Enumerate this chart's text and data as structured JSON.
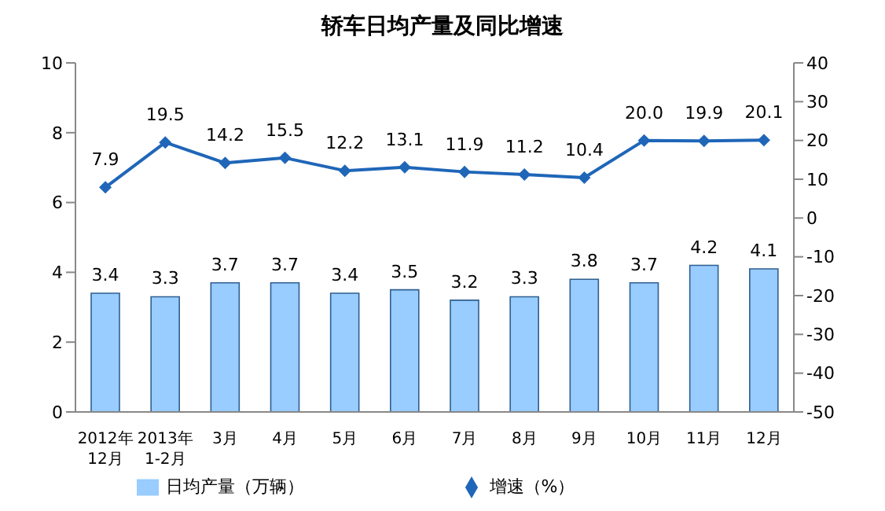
{
  "chart_data": {
    "type": "bar",
    "title": "轿车日均产量及同比增速",
    "categories": [
      "2012年\n12月",
      "2013年\n1-2月",
      "3月",
      "4月",
      "5月",
      "6月",
      "7月",
      "8月",
      "9月",
      "10月",
      "11月",
      "12月"
    ],
    "series": [
      {
        "name": "日均产量（万辆）",
        "color": "#99ccff",
        "values": [
          3.4,
          3.3,
          3.7,
          3.7,
          3.4,
          3.5,
          3.2,
          3.3,
          3.8,
          3.7,
          4.2,
          4.1
        ],
        "value_labels": [
          "3.4",
          "3.3",
          "3.7",
          "3.7",
          "3.4",
          "3.5",
          "3.2",
          "3.3",
          "3.8",
          "3.7",
          "4.2",
          "4.1"
        ]
      },
      {
        "name": "增速（%）",
        "type": "line",
        "axis": "y2",
        "color": "#1f66b8",
        "values": [
          7.9,
          19.5,
          14.2,
          15.5,
          12.2,
          13.1,
          11.9,
          11.2,
          10.4,
          20.0,
          19.9,
          20.1
        ],
        "value_labels": [
          "7.9",
          "19.5",
          "14.2",
          "15.5",
          "12.2",
          "13.1",
          "11.9",
          "11.2",
          "10.4",
          "20.0",
          "19.9",
          "20.1"
        ]
      }
    ],
    "ylim": [
      0,
      10
    ],
    "yticks": [
      0,
      2,
      4,
      6,
      8,
      10
    ],
    "y2lim": [
      -50,
      40
    ],
    "y2ticks": [
      -50,
      -40,
      -30,
      -20,
      -10,
      0,
      10,
      20,
      30,
      40
    ],
    "grid": false,
    "legend": "bottom",
    "marker": "diamond",
    "line_style": "solid"
  }
}
